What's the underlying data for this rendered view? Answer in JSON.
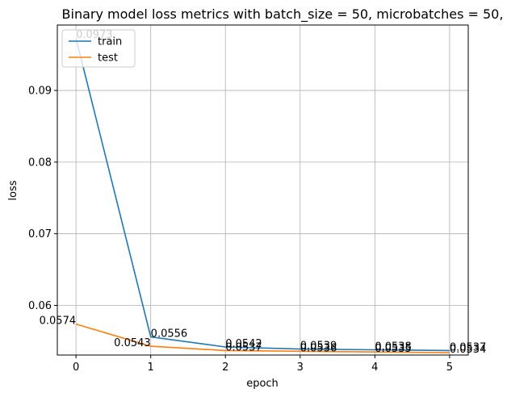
{
  "chart_data": {
    "type": "line",
    "title": "Binary model loss metrics with batch_size = 50, microbatches = 50,",
    "xlabel": "epoch",
    "ylabel": "loss",
    "x": [
      0,
      1,
      2,
      3,
      4,
      5
    ],
    "xticks": [
      "0",
      "1",
      "2",
      "3",
      "4",
      "5"
    ],
    "yticks": [
      "0.06",
      "0.07",
      "0.08",
      "0.09"
    ],
    "ytick_values": [
      0.06,
      0.07,
      0.08,
      0.09
    ],
    "xlim": [
      -0.25,
      5.25
    ],
    "ylim": [
      0.05307,
      0.09913
    ],
    "grid": true,
    "legend_position": "top-left",
    "series": [
      {
        "name": "train",
        "color": "#1f77b4",
        "values": [
          0.0973,
          0.0556,
          0.0542,
          0.0539,
          0.0538,
          0.0537
        ],
        "labels": [
          "0.0973",
          "0.0556",
          "0.0542",
          "0.0539",
          "0.0538",
          "0.0537"
        ]
      },
      {
        "name": "test",
        "color": "#ff7f0e",
        "values": [
          0.0574,
          0.0543,
          0.0537,
          0.0536,
          0.0535,
          0.0534
        ],
        "labels": [
          "0.0574",
          "0.0543",
          "0.0537",
          "0.0536",
          "0.0535",
          "0.0534"
        ]
      }
    ]
  }
}
